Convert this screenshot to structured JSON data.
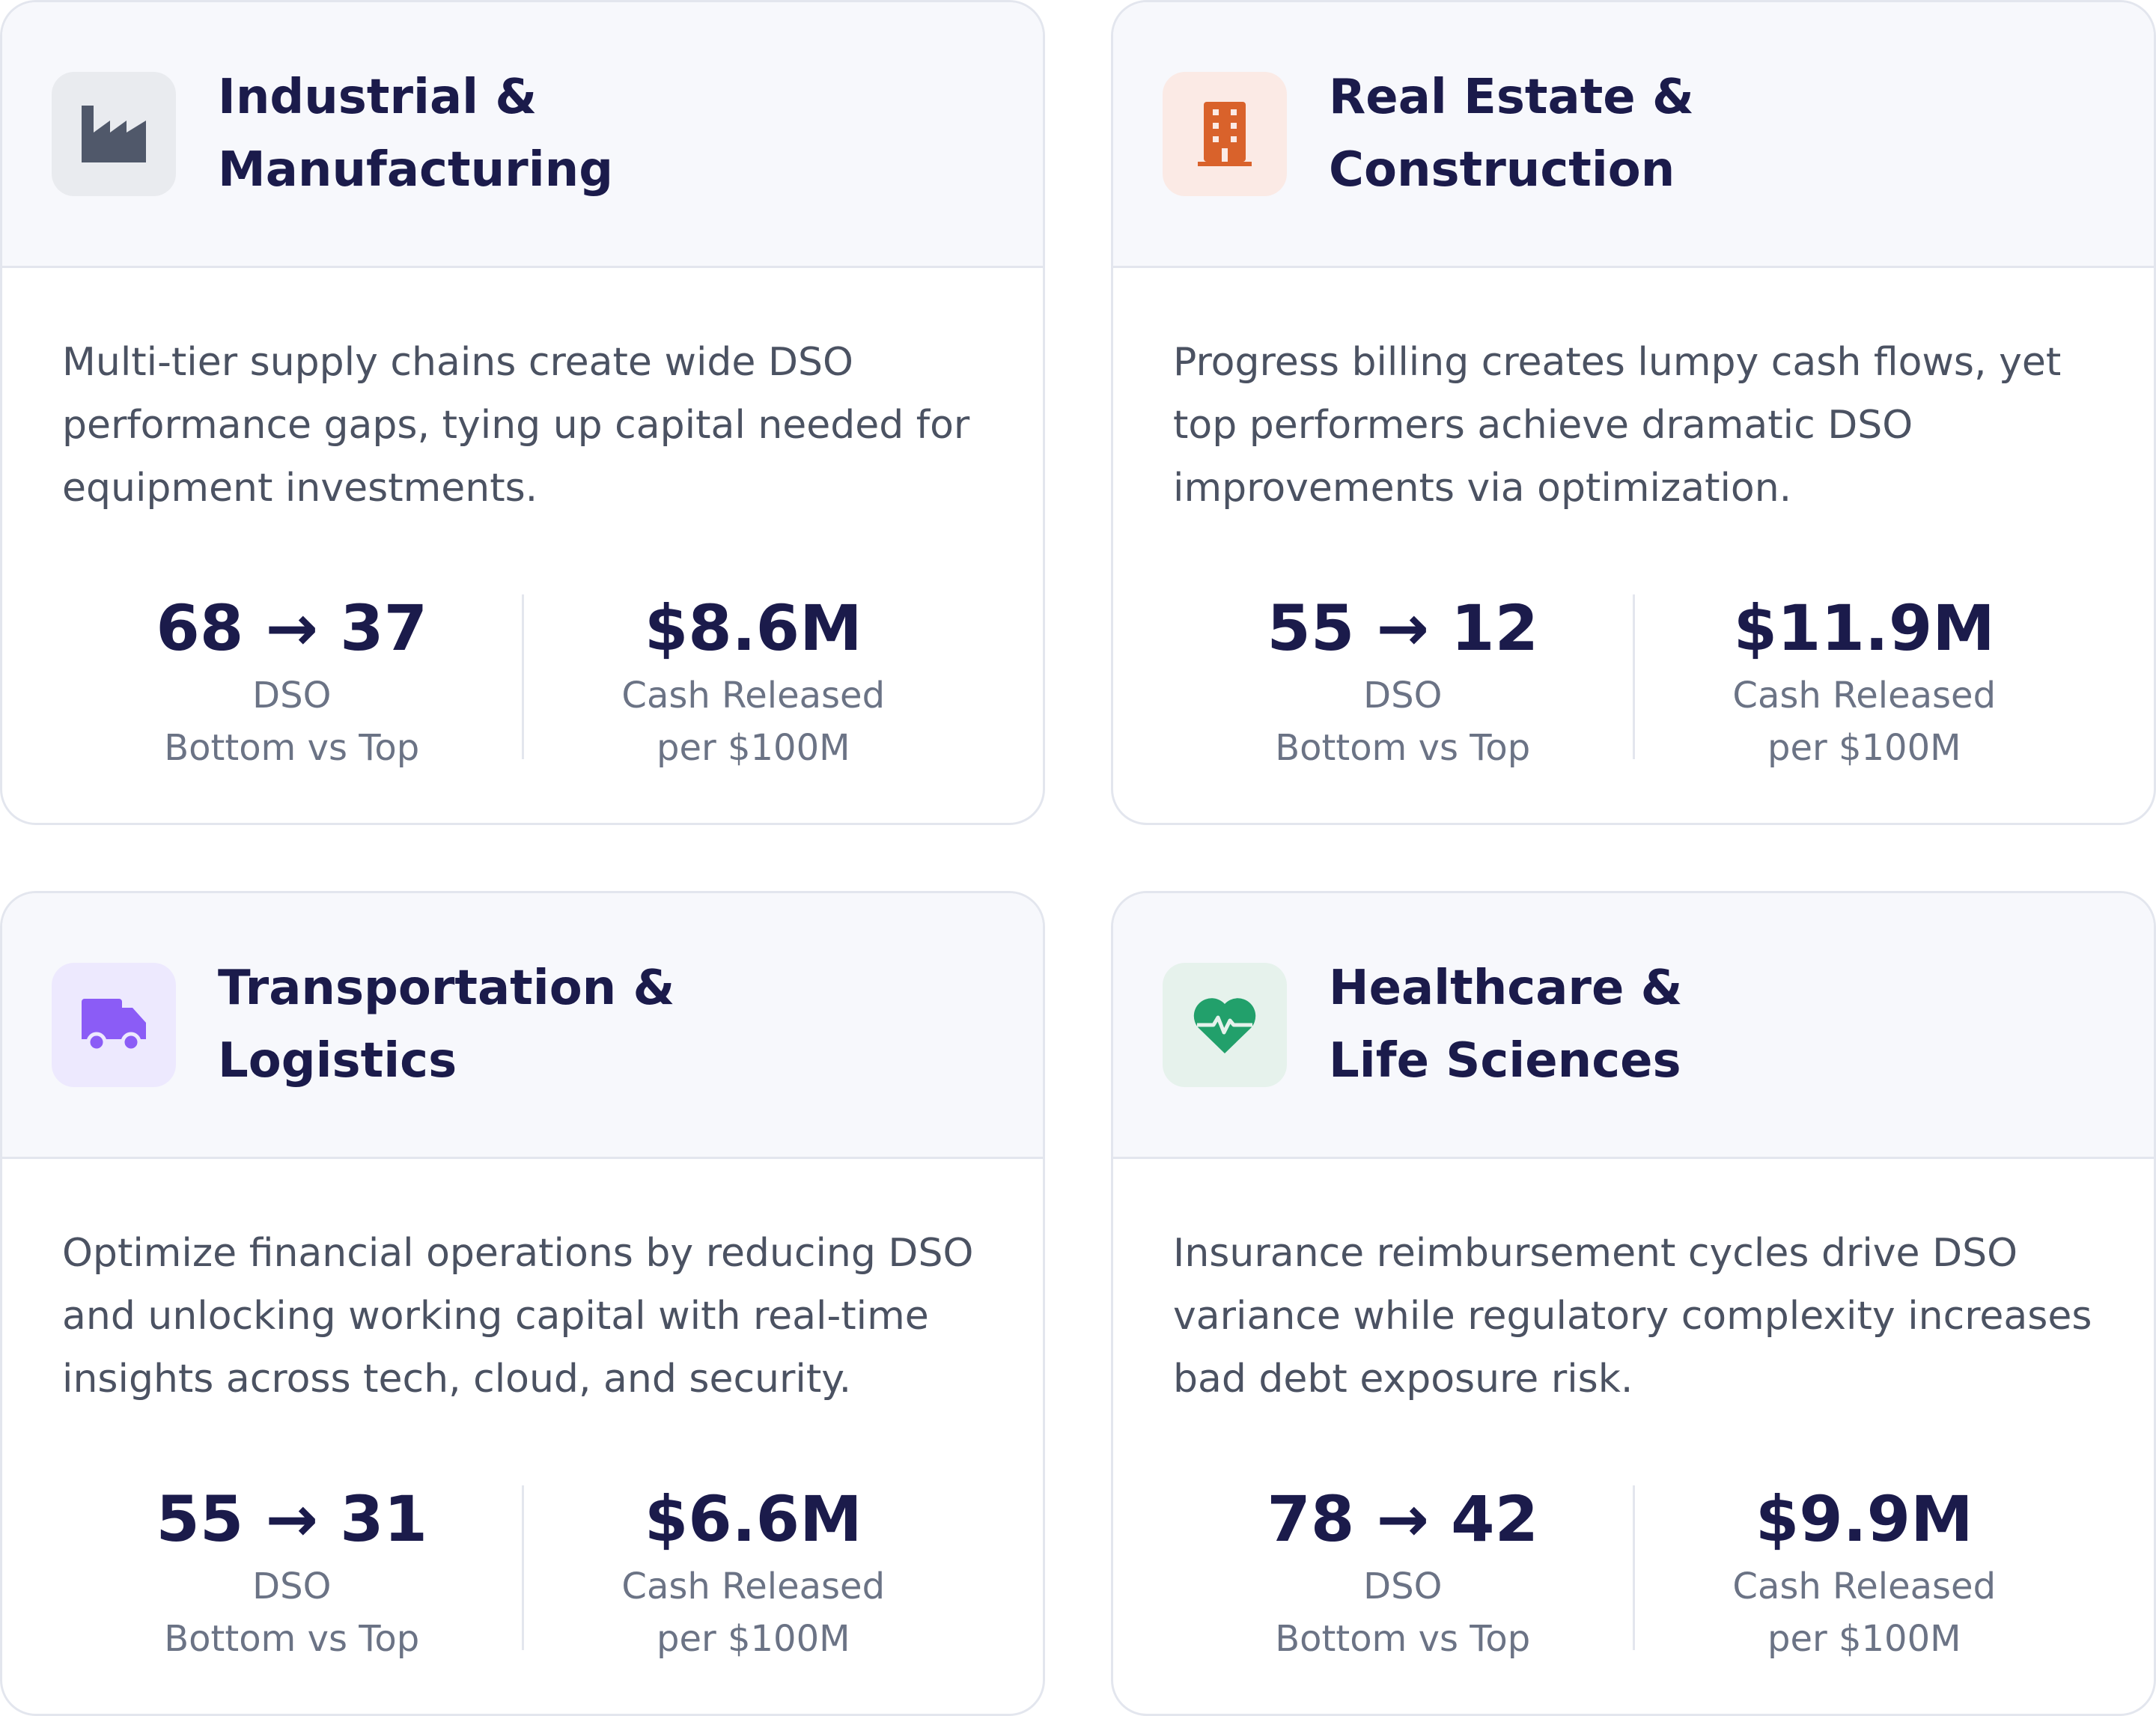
{
  "cards": [
    {
      "title": "Industrial & Manufacturing",
      "description": "Multi-tier supply chains create wide DSO performance gaps, tying up capital needed for equipment investments.",
      "dso": "68 → 37",
      "dso_label": "DSO",
      "dso_sub": "Bottom vs Top",
      "cash": "$8.6M",
      "cash_label": "Cash Released",
      "cash_sub": "per $100M"
    },
    {
      "title": "Real Estate & Construction",
      "description": "Progress billing creates lumpy cash flows, yet top performers achieve dramatic DSO improvements via optimization.",
      "dso": "55 → 12",
      "dso_label": "DSO",
      "dso_sub": "Bottom vs Top",
      "cash": "$11.9M",
      "cash_label": "Cash Released",
      "cash_sub": "per $100M"
    },
    {
      "title": "Transportation & Logistics",
      "description": "Optimize financial operations by reducing DSO and unlocking working capital with real-time insights across tech, cloud, and security.",
      "dso": "55 → 31",
      "dso_label": "DSO",
      "dso_sub": "Bottom vs Top",
      "cash": "$6.6M",
      "cash_label": "Cash Released",
      "cash_sub": "per $100M"
    },
    {
      "title": "Healthcare & Life Sciences",
      "description": "Insurance reimbursement cycles drive DSO variance while regulatory complexity increases bad debt exposure risk.",
      "dso": "78 → 42",
      "dso_label": "DSO",
      "dso_sub": "Bottom vs Top",
      "cash": "$9.9M",
      "cash_label": "Cash Released",
      "cash_sub": "per $100M"
    }
  ]
}
